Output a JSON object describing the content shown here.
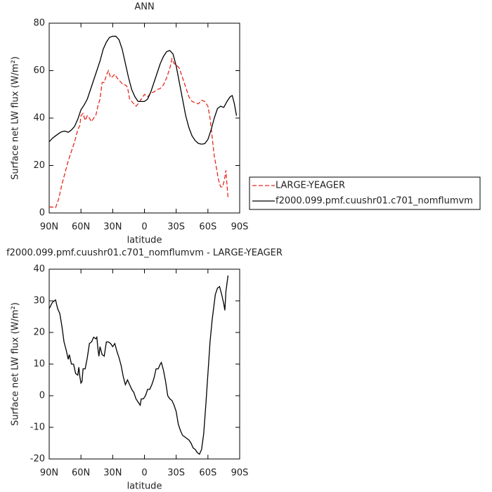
{
  "chart_data": [
    {
      "type": "line",
      "title": "ANN",
      "x_label": "latitude",
      "y_label": "Surface net LW flux (W/m²)",
      "xlim": [
        90,
        -90
      ],
      "xticks": [
        {
          "value": 90,
          "label": "90N"
        },
        {
          "value": 60,
          "label": "60N"
        },
        {
          "value": 30,
          "label": "30N"
        },
        0,
        {
          "value": -30,
          "label": "30S"
        },
        {
          "value": -60,
          "label": "60S"
        },
        {
          "value": -90,
          "label": "90S"
        }
      ],
      "ylim": [
        0,
        80
      ],
      "yticks": [
        0,
        20,
        40,
        60,
        80
      ],
      "legend": "right",
      "series": [
        {
          "name": "LARGE-YEAGER",
          "color": "#e8281e",
          "dash": "dashed",
          "x": [
            90,
            87,
            84,
            81,
            78,
            75,
            72,
            69,
            66,
            63,
            61,
            60,
            58,
            56,
            54,
            52,
            50,
            48,
            46,
            44,
            42,
            40,
            38,
            36,
            34,
            32,
            30,
            28,
            26,
            24,
            22,
            20,
            18,
            16,
            14,
            12,
            10,
            8,
            6,
            3,
            0,
            -3,
            -6,
            -9,
            -12,
            -15,
            -18,
            -21,
            -24,
            -26,
            -28,
            -30,
            -33,
            -36,
            -39,
            -42,
            -45,
            -48,
            -51,
            -54,
            -57,
            -60,
            -62,
            -64,
            -66,
            -68,
            -70,
            -72,
            -74,
            -76,
            -77,
            -78,
            -79
          ],
          "values": [
            2.5,
            2.5,
            2.2,
            6,
            12,
            17,
            22,
            26,
            30,
            35,
            37,
            41,
            42,
            39,
            41,
            40,
            38.5,
            40,
            41,
            45,
            48,
            55,
            55,
            58,
            60,
            57,
            57.5,
            58.5,
            57,
            56,
            55,
            54,
            54,
            53,
            48,
            47,
            46,
            45,
            46,
            48,
            50,
            49,
            50.5,
            51,
            52,
            52.5,
            54,
            57,
            61,
            65,
            63,
            62.5,
            61,
            57,
            53,
            49,
            47,
            46.5,
            46,
            47.5,
            47,
            45,
            40,
            32,
            24,
            19,
            14,
            11,
            11,
            15,
            18,
            12,
            6.5
          ]
        },
        {
          "name": "f2000.099.pmf.cuushr01.c701_nomflumvm",
          "color": "#000000",
          "dash": "solid",
          "x": [
            90,
            87,
            84,
            81,
            78,
            75,
            72,
            69,
            66,
            63,
            60,
            57,
            54,
            51,
            48,
            45,
            42,
            39,
            36,
            33,
            30,
            27,
            24,
            21,
            18,
            15,
            12,
            9,
            6,
            3,
            0,
            -3,
            -6,
            -9,
            -12,
            -15,
            -18,
            -21,
            -24,
            -27,
            -30,
            -33,
            -36,
            -39,
            -42,
            -45,
            -48,
            -51,
            -54,
            -57,
            -60,
            -63,
            -66,
            -69,
            -72,
            -75,
            -78,
            -81,
            -83,
            -85,
            -87
          ],
          "values": [
            30,
            31.5,
            32.5,
            33.5,
            34.3,
            34.5,
            34,
            35,
            36.5,
            39.5,
            43.5,
            45.5,
            48,
            52,
            56,
            60,
            64,
            69,
            72,
            74,
            74.5,
            74.5,
            73,
            69,
            63,
            57,
            52,
            49,
            47,
            47,
            47,
            48,
            51,
            55,
            59,
            63,
            66,
            68,
            68.5,
            67,
            62,
            55,
            48,
            41,
            36,
            32.5,
            30.5,
            29.3,
            29,
            29.2,
            31,
            35,
            40,
            44,
            45,
            44.5,
            47,
            49,
            49.5,
            46,
            41
          ]
        }
      ]
    },
    {
      "type": "line",
      "title": "f2000.099.pmf.cuushr01.c701_nomflumvm - LARGE-YEAGER",
      "x_label": "latitude",
      "y_label": "Surface net LW flux (W/m²)",
      "xlim": [
        90,
        -90
      ],
      "xticks": [
        {
          "value": 90,
          "label": "90N"
        },
        {
          "value": 60,
          "label": "60N"
        },
        {
          "value": 30,
          "label": "30N"
        },
        0,
        {
          "value": -30,
          "label": "30S"
        },
        {
          "value": -60,
          "label": "60S"
        },
        {
          "value": -90,
          "label": "90S"
        }
      ],
      "ylim": [
        -20,
        40
      ],
      "yticks": [
        -20,
        -10,
        0,
        10,
        20,
        30,
        40
      ],
      "color": "#000000",
      "x": [
        90,
        87,
        84,
        82,
        80,
        78,
        76,
        74,
        72,
        71,
        69,
        67,
        65,
        63,
        62,
        61,
        60,
        59,
        58,
        56,
        54,
        52,
        50,
        48,
        46,
        45,
        44,
        43,
        42,
        40,
        38,
        36,
        34,
        32,
        30,
        28,
        26,
        24,
        22,
        20,
        18,
        16,
        14,
        12,
        10,
        8,
        6,
        4,
        3,
        1,
        -1,
        -3,
        -5,
        -7,
        -9,
        -11,
        -13,
        -15,
        -16,
        -18,
        -20,
        -22,
        -24,
        -26,
        -28,
        -30,
        -32,
        -34,
        -36,
        -38,
        -40,
        -42,
        -44,
        -46,
        -48,
        -50,
        -52,
        -54,
        -56,
        -58,
        -60,
        -62,
        -64,
        -67,
        -69,
        -71,
        -73,
        -75,
        -76,
        -77,
        -79
      ],
      "values": [
        27.5,
        29.5,
        30.3,
        27.5,
        26,
        22,
        17,
        14.5,
        11.5,
        13,
        10,
        10,
        7,
        6.5,
        9,
        6,
        4,
        4.5,
        8.5,
        8.5,
        12,
        16.5,
        17,
        18.5,
        18,
        18.5,
        15,
        12.5,
        15.5,
        13,
        12.5,
        17,
        17,
        16.5,
        15.5,
        16.5,
        14,
        12,
        9.5,
        6,
        3.5,
        5,
        3.5,
        2,
        1,
        -1,
        -2,
        -3,
        -1,
        -1,
        0,
        2,
        2,
        3.5,
        5.5,
        8.5,
        8.5,
        10,
        10.5,
        8,
        4.5,
        0,
        -1,
        -1.5,
        -3,
        -5,
        -9,
        -11,
        -12.5,
        -13,
        -13.5,
        -14,
        -15,
        -16.5,
        -17,
        -18,
        -18.5,
        -17,
        -12,
        -3,
        7,
        17,
        24,
        32,
        34,
        34.5,
        32,
        29,
        27,
        33,
        38
      ]
    }
  ]
}
